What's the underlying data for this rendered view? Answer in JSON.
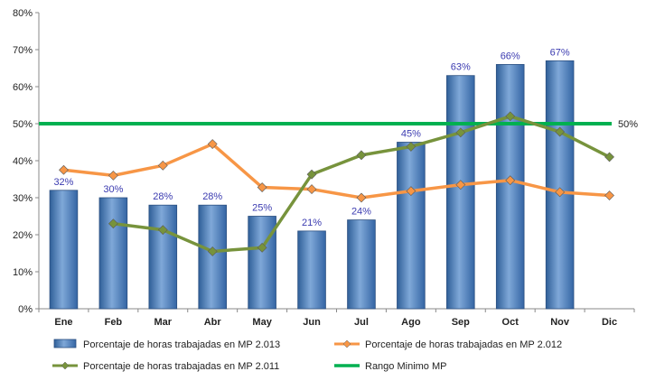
{
  "chart_data": {
    "type": "bar",
    "categories": [
      "Ene",
      "Feb",
      "Mar",
      "Abr",
      "May",
      "Jun",
      "Jul",
      "Ago",
      "Sep",
      "Oct",
      "Nov",
      "Dic"
    ],
    "ylim": [
      0,
      80
    ],
    "yticks": [
      "0%",
      "10%",
      "20%",
      "30%",
      "40%",
      "50%",
      "60%",
      "70%",
      "80%"
    ],
    "grid": false,
    "legend_position": "bottom",
    "series": [
      {
        "name": "Porcentaje de horas trabajadas en MP 2.013",
        "kind": "bar",
        "color": "#4f81bd",
        "values": [
          32,
          30,
          28,
          28,
          25,
          21,
          24,
          45,
          63,
          66,
          67,
          null
        ],
        "labels": [
          "32%",
          "30%",
          "28%",
          "28%",
          "25%",
          "21%",
          "24%",
          "45%",
          "63%",
          "66%",
          "67%",
          ""
        ]
      },
      {
        "name": "Porcentaje de horas trabajadas en MP 2.012",
        "kind": "line",
        "color": "#f79646",
        "values": [
          37.5,
          36,
          38.7,
          44.5,
          32.8,
          32.3,
          30,
          31.8,
          33.5,
          34.7,
          31.5,
          30.6
        ]
      },
      {
        "name": "Porcentaje de horas trabajadas en MP 2.011",
        "kind": "line",
        "color": "#77933c",
        "values": [
          null,
          23,
          21.3,
          15.5,
          16.5,
          36.3,
          41.5,
          43.8,
          47.6,
          52,
          47.8,
          41
        ]
      },
      {
        "name": "Rango Minimo MP",
        "kind": "hline",
        "color": "#00b050",
        "value": 50,
        "label": "50%"
      }
    ]
  }
}
